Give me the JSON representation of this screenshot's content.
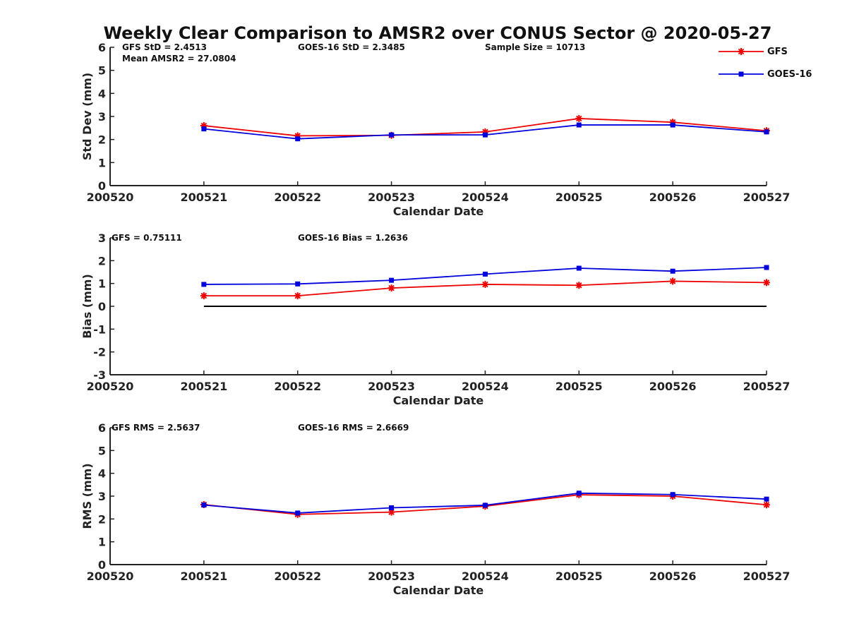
{
  "figure": {
    "title": "Weekly Clear Comparison to AMSR2 over CONUS Sector @ 2020-05-27"
  },
  "colors": {
    "gfs": "#ee0000",
    "goes16": "#0000dd",
    "axis": "#222222",
    "zero_line": "#000000"
  },
  "legend": {
    "placement": "top-right",
    "entries": [
      {
        "name": "GFS",
        "marker": "star",
        "color": "#ee0000"
      },
      {
        "name": "GOES-16",
        "marker": "square",
        "color": "#0000dd"
      }
    ]
  },
  "chart_data": [
    {
      "id": "std",
      "type": "line",
      "xlabel": "Calendar Date",
      "ylabel": "Std Dev (mm)",
      "categories": [
        "200520",
        "200521",
        "200522",
        "200523",
        "200524",
        "200525",
        "200526",
        "200527"
      ],
      "ylim": [
        0,
        6
      ],
      "yticks": [
        "0",
        "1",
        "2",
        "3",
        "4",
        "5",
        "6"
      ],
      "grid": false,
      "zero_line": false,
      "annotations": {
        "gfs": "GFS StD = 2.4513",
        "goes": "GOES-16 StD = 2.3485",
        "sample": "Sample Size = 10713",
        "mean": "Mean AMSR2 = 27.0804"
      },
      "series": [
        {
          "name": "GFS",
          "color": "#ee0000",
          "marker": "star",
          "x": [
            "200521",
            "200522",
            "200523",
            "200524",
            "200525",
            "200526",
            "200527"
          ],
          "values": [
            2.6,
            2.16,
            2.18,
            2.33,
            2.91,
            2.75,
            2.38
          ]
        },
        {
          "name": "GOES-16",
          "color": "#0000dd",
          "marker": "square",
          "x": [
            "200521",
            "200522",
            "200523",
            "200524",
            "200525",
            "200526",
            "200527"
          ],
          "values": [
            2.46,
            2.03,
            2.2,
            2.2,
            2.63,
            2.63,
            2.33
          ]
        }
      ]
    },
    {
      "id": "bias",
      "type": "line",
      "xlabel": "Calendar Date",
      "ylabel": "Bias (mm)",
      "categories": [
        "200520",
        "200521",
        "200522",
        "200523",
        "200524",
        "200525",
        "200526",
        "200527"
      ],
      "ylim": [
        -3,
        3
      ],
      "yticks": [
        "-3",
        "-2",
        "-1",
        "0",
        "1",
        "2",
        "3"
      ],
      "grid": false,
      "zero_line": true,
      "annotations": {
        "gfs": "GFS = 0.75111",
        "goes": "GOES-16 Bias  = 1.2636"
      },
      "series": [
        {
          "name": "GFS",
          "color": "#ee0000",
          "marker": "star",
          "x": [
            "200521",
            "200522",
            "200523",
            "200524",
            "200525",
            "200526",
            "200527"
          ],
          "values": [
            0.46,
            0.46,
            0.8,
            0.96,
            0.92,
            1.1,
            1.04
          ]
        },
        {
          "name": "GOES-16",
          "color": "#0000dd",
          "marker": "square",
          "x": [
            "200521",
            "200522",
            "200523",
            "200524",
            "200525",
            "200526",
            "200527"
          ],
          "values": [
            0.96,
            0.98,
            1.14,
            1.41,
            1.67,
            1.54,
            1.7
          ]
        }
      ]
    },
    {
      "id": "rms",
      "type": "line",
      "xlabel": "Calendar Date",
      "ylabel": "RMS (mm)",
      "categories": [
        "200520",
        "200521",
        "200522",
        "200523",
        "200524",
        "200525",
        "200526",
        "200527"
      ],
      "ylim": [
        0,
        6
      ],
      "yticks": [
        "0",
        "1",
        "2",
        "3",
        "4",
        "5",
        "6"
      ],
      "grid": false,
      "zero_line": false,
      "annotations": {
        "gfs": "GFS RMS = 2.5637",
        "goes": "GOES-16 RMS = 2.6669"
      },
      "series": [
        {
          "name": "GFS",
          "color": "#ee0000",
          "marker": "star",
          "x": [
            "200521",
            "200522",
            "200523",
            "200524",
            "200525",
            "200526",
            "200527"
          ],
          "values": [
            2.63,
            2.2,
            2.3,
            2.56,
            3.06,
            3.0,
            2.62
          ]
        },
        {
          "name": "GOES-16",
          "color": "#0000dd",
          "marker": "square",
          "x": [
            "200521",
            "200522",
            "200523",
            "200524",
            "200525",
            "200526",
            "200527"
          ],
          "values": [
            2.61,
            2.26,
            2.49,
            2.6,
            3.13,
            3.07,
            2.87
          ]
        }
      ]
    }
  ]
}
